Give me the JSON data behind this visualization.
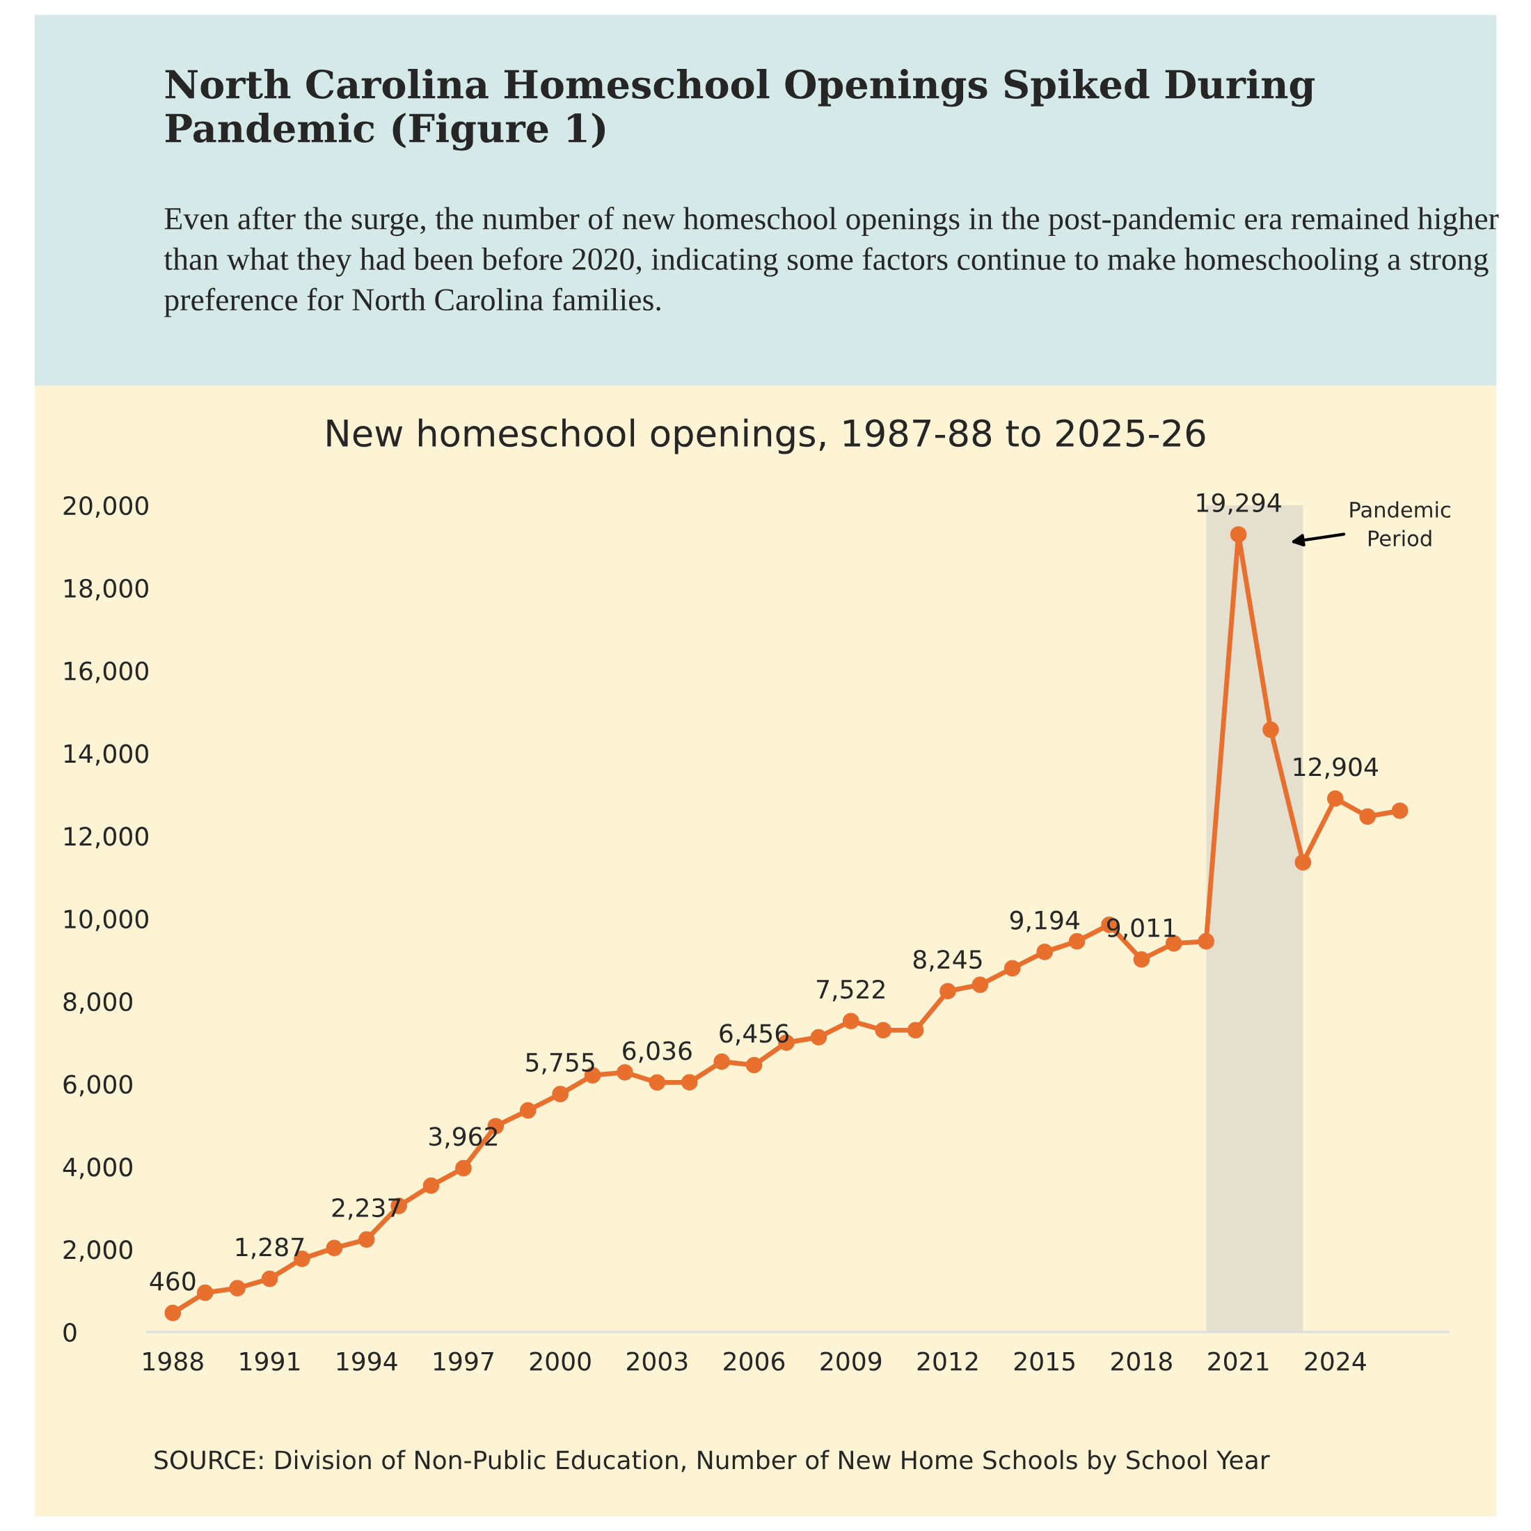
{
  "chart_data": {
    "type": "line",
    "title": "North Carolina Homeschool Openings Spiked During Pandemic (Figure 1)",
    "subtitle": "Even after the surge, the number of new homeschool openings in the post-pandemic era remained higher than what they had been before 2020, indicating some factors continue to make homeschooling a strong preference for North Carolina families.",
    "annotations": [
      "New homeschool openings, 1987-88 to 2025-26",
      "SOURCE: Division of Non-Public Education, Number of New Home Schools by School Year"
    ],
    "x": [
      1988,
      1989,
      1990,
      1991,
      1992,
      1993,
      1994,
      1995,
      1996,
      1997,
      1998,
      1999,
      2000,
      2001,
      2002,
      2003,
      2004,
      2005,
      2006,
      2007,
      2008,
      2009,
      2010,
      2011,
      2012,
      2013,
      2014,
      2015,
      2016,
      2017,
      2018,
      2019,
      2020,
      2021,
      2022,
      2023,
      2024,
      2025,
      2026
    ],
    "series": [
      {
        "color": "#e8702f",
        "values": [
          460,
          950,
          1060,
          1287,
          1770,
          2030,
          2237,
          3050,
          3540,
          3962,
          4980,
          5360,
          5755,
          6210,
          6280,
          6036,
          6040,
          6540,
          6456,
          7000,
          7130,
          7522,
          7300,
          7300,
          8245,
          8400,
          8800,
          9194,
          9450,
          9850,
          9011,
          9400,
          9450,
          19294,
          14570,
          11360,
          12904,
          12470,
          12610
        ],
        "value_labels": [
          "460",
          null,
          null,
          "1,287",
          null,
          null,
          "2,237",
          null,
          null,
          "3,962",
          null,
          null,
          "5,755",
          null,
          null,
          "6,036",
          null,
          null,
          "6,456",
          null,
          null,
          "7,522",
          null,
          null,
          "8,245",
          null,
          null,
          "9,194",
          null,
          null,
          "9,011",
          null,
          null,
          "19,294",
          null,
          null,
          "12,904",
          null,
          null
        ]
      }
    ],
    "xlim": [
      1987.2,
      2027.5
    ],
    "xticks": [
      1988,
      1991,
      1994,
      1997,
      2000,
      2003,
      2006,
      2009,
      2012,
      2015,
      2018,
      2021,
      2024
    ],
    "ylim": [
      0,
      20000
    ],
    "yticks": [
      {
        "value": 0,
        "label": "0"
      },
      {
        "value": 2000,
        "label": "2,000"
      },
      {
        "value": 4000,
        "label": "4,000"
      },
      {
        "value": 6000,
        "label": "6,000"
      },
      {
        "value": 8000,
        "label": "8,000"
      },
      {
        "value": 10000,
        "label": "10,000"
      },
      {
        "value": 12000,
        "label": "12,000"
      },
      {
        "value": 14000,
        "label": "14,000"
      },
      {
        "value": 16000,
        "label": "16,000"
      },
      {
        "value": 18000,
        "label": "18,000"
      },
      {
        "value": 20000,
        "label": "20,000"
      }
    ],
    "bands": [
      {
        "axis": "x",
        "from": 2020,
        "to": 2023,
        "label": "Pandemic Period",
        "color": "#e5dfd0"
      }
    ],
    "marker": "circle",
    "line_style": "solid",
    "grid": false,
    "legend": false
  }
}
